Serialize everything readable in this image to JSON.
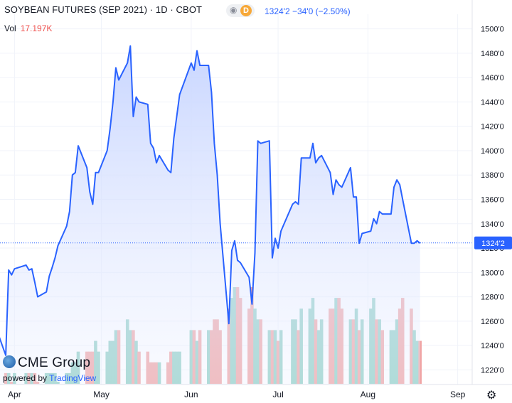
{
  "header": {
    "title": "SOYBEAN FUTURES (SEP 2021) · 1D · CBOT",
    "badge": "D",
    "quote": "1324'2  −34'0 (−2.50%)",
    "vol_label": "Vol",
    "vol_value": "17.197K"
  },
  "branding": {
    "logo_text": "CME Group",
    "powered_by": "powered by",
    "platform": "TradingView"
  },
  "colors": {
    "line": "#2962ff",
    "area_top": "#c6d4ff",
    "volume_up": "#8fcfc4",
    "volume_down": "#f0a3a3",
    "last_price_label": "#2962ff"
  },
  "chart_data": {
    "type": "area",
    "title": "SOYBEAN FUTURES (SEP 2021)",
    "y_ticks": [
      "1220'0",
      "1240'0",
      "1260'0",
      "1280'0",
      "1300'0",
      "1320'0",
      "1340'0",
      "1360'0",
      "1380'0",
      "1400'0",
      "1420'0",
      "1440'0",
      "1460'0",
      "1480'0",
      "1500'0"
    ],
    "ylim": [
      1208,
      1512
    ],
    "x_tick_labels": [
      "Apr",
      "May",
      "Jun",
      "Jul",
      "Aug",
      "Sep"
    ],
    "x_tick_dates": [
      "2021-04-01",
      "2021-05-01",
      "2021-06-01",
      "2021-07-01",
      "2021-08-01",
      "2021-09-01"
    ],
    "last_price": 1324.25,
    "last_price_label": "1324'2",
    "series": [
      {
        "dates": [
          "2021-03-25",
          "2021-03-26",
          "2021-03-29",
          "2021-03-30",
          "2021-03-31",
          "2021-04-01",
          "2021-04-05",
          "2021-04-06",
          "2021-04-07",
          "2021-04-08",
          "2021-04-09",
          "2021-04-12",
          "2021-04-13",
          "2021-04-14",
          "2021-04-15",
          "2021-04-16",
          "2021-04-19",
          "2021-04-20",
          "2021-04-21",
          "2021-04-22",
          "2021-04-23",
          "2021-04-26",
          "2021-04-27",
          "2021-04-28",
          "2021-04-29",
          "2021-04-30",
          "2021-05-03",
          "2021-05-04",
          "2021-05-05",
          "2021-05-06",
          "2021-05-07",
          "2021-05-10",
          "2021-05-11",
          "2021-05-12",
          "2021-05-13",
          "2021-05-14",
          "2021-05-17",
          "2021-05-18",
          "2021-05-19",
          "2021-05-20",
          "2021-05-21",
          "2021-05-24",
          "2021-05-25",
          "2021-05-26",
          "2021-05-27",
          "2021-05-28",
          "2021-06-01",
          "2021-06-02",
          "2021-06-03",
          "2021-06-04",
          "2021-06-07",
          "2021-06-08",
          "2021-06-09",
          "2021-06-10",
          "2021-06-11",
          "2021-06-14",
          "2021-06-15",
          "2021-06-16",
          "2021-06-17",
          "2021-06-18",
          "2021-06-21",
          "2021-06-22",
          "2021-06-23",
          "2021-06-24",
          "2021-06-25",
          "2021-06-28",
          "2021-06-29",
          "2021-06-30",
          "2021-07-01",
          "2021-07-02",
          "2021-07-06",
          "2021-07-07",
          "2021-07-08",
          "2021-07-09",
          "2021-07-12",
          "2021-07-13",
          "2021-07-14",
          "2021-07-15",
          "2021-07-16",
          "2021-07-19",
          "2021-07-20",
          "2021-07-21",
          "2021-07-22",
          "2021-07-23",
          "2021-07-26",
          "2021-07-27",
          "2021-07-28",
          "2021-07-29",
          "2021-07-30",
          "2021-08-02",
          "2021-08-03",
          "2021-08-04",
          "2021-08-05",
          "2021-08-06",
          "2021-08-09",
          "2021-08-10",
          "2021-08-11",
          "2021-08-12",
          "2021-08-13",
          "2021-08-16",
          "2021-08-17",
          "2021-08-18",
          "2021-08-19"
        ],
        "values": [
          1255,
          1252,
          1232,
          1302,
          1298,
          1303,
          1306,
          1302,
          1303,
          1292,
          1280,
          1284,
          1297,
          1304,
          1312,
          1322,
          1338,
          1350,
          1380,
          1382,
          1404,
          1386,
          1366,
          1356,
          1382,
          1382,
          1400,
          1418,
          1440,
          1468,
          1458,
          1472,
          1486,
          1428,
          1444,
          1440,
          1438,
          1406,
          1402,
          1390,
          1396,
          1384,
          1382,
          1410,
          1428,
          1446,
          1472,
          1466,
          1482,
          1470,
          1470,
          1448,
          1406,
          1380,
          1340,
          1258,
          1318,
          1326,
          1310,
          1308,
          1296,
          1274,
          1316,
          1408,
          1406,
          1408,
          1312,
          1328,
          1320,
          1334,
          1356,
          1358,
          1356,
          1394,
          1394,
          1406,
          1390,
          1394,
          1396,
          1382,
          1364,
          1376,
          1372,
          1370,
          1386,
          1362,
          1362,
          1324,
          1332,
          1334,
          1344,
          1340,
          1350,
          1348,
          1348,
          1370,
          1376,
          1372,
          1360,
          1324,
          1324,
          1326,
          1324
        ]
      }
    ],
    "volume_series": {
      "values": [
        1,
        1,
        1,
        1,
        0,
        1,
        1,
        1,
        1,
        1,
        0,
        1,
        1,
        1,
        1,
        0,
        1,
        1,
        2,
        2,
        3,
        3,
        3,
        3,
        4,
        3,
        3,
        4,
        4,
        5,
        5,
        6,
        5,
        5,
        4,
        3,
        3,
        2,
        2,
        2,
        2,
        2,
        3,
        3,
        3,
        3,
        5,
        5,
        4,
        5,
        5,
        5,
        6,
        6,
        5,
        7,
        8,
        9,
        9,
        8,
        7,
        9,
        7,
        6,
        6,
        5,
        5,
        5,
        4,
        5,
        6,
        6,
        5,
        7,
        7,
        8,
        6,
        5,
        6,
        7,
        7,
        8,
        8,
        7,
        6,
        6,
        7,
        5,
        6,
        7,
        8,
        6,
        6,
        5,
        5,
        5,
        6,
        7,
        8,
        7,
        5,
        4,
        4
      ]
    }
  }
}
